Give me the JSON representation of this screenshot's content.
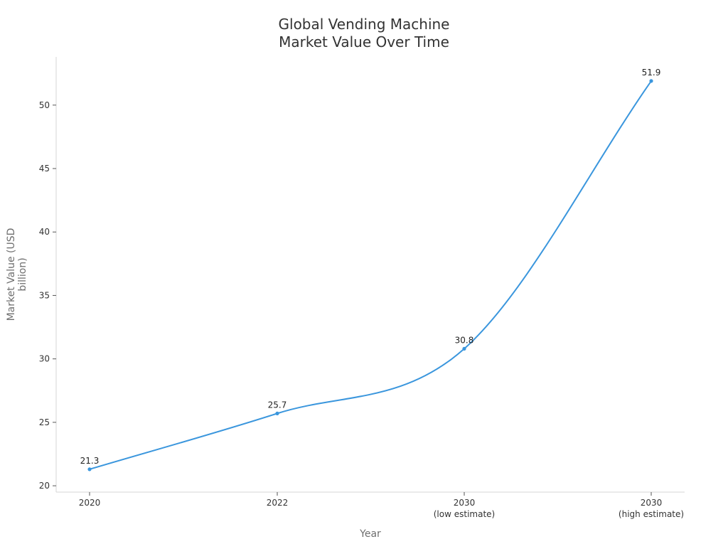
{
  "chart_data": {
    "type": "line",
    "title_lines": [
      "Global Vending Machine",
      "Market Value Over Time"
    ],
    "xlabel": "Year",
    "ylabel_lines": [
      "Market Value (USD",
      "billion)"
    ],
    "categories": [
      [
        "2020"
      ],
      [
        "2022"
      ],
      [
        "2030",
        "(low estimate)"
      ],
      [
        "2030",
        "(high estimate)"
      ]
    ],
    "series": [
      {
        "values": [
          21.3,
          25.7,
          30.8,
          51.9
        ],
        "data_labels": [
          "21.3",
          "25.7",
          "30.8",
          "51.9"
        ],
        "color": "#3a96dd"
      }
    ],
    "yticks": [
      20,
      25,
      30,
      35,
      40,
      45,
      50
    ],
    "ylim": [
      19.5,
      53.8
    ],
    "grid": false,
    "smooth": true
  }
}
